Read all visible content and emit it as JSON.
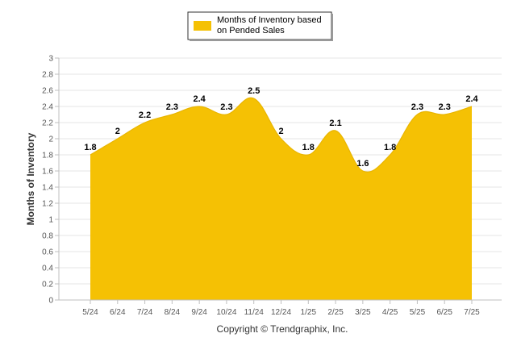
{
  "chart_data": {
    "type": "area",
    "categories": [
      "5/24",
      "6/24",
      "7/24",
      "8/24",
      "9/24",
      "10/24",
      "11/24",
      "12/24",
      "1/25",
      "2/25",
      "3/25",
      "4/25",
      "5/25",
      "6/25",
      "7/25"
    ],
    "series": [
      {
        "name": "Months of Inventory based on Pended Sales",
        "values": [
          1.8,
          2,
          2.2,
          2.3,
          2.4,
          2.3,
          2.5,
          2,
          1.8,
          2.1,
          1.6,
          1.8,
          2.3,
          2.3,
          2.4
        ],
        "color": "#F5C104"
      }
    ],
    "data_labels": [
      "1.8",
      "2",
      "2.2",
      "2.3",
      "2.4",
      "2.3",
      "2.5",
      "2",
      "1.8",
      "2.1",
      "1.6",
      "1.8",
      "2.3",
      "2.3",
      "2.4"
    ],
    "ylabel": "Months of Inventory",
    "xlabel": "",
    "ylim": [
      0,
      3
    ],
    "yticks": [
      "0",
      "0.2",
      "0.4",
      "0.6",
      "0.8",
      "1",
      "1.2",
      "1.4",
      "1.6",
      "1.8",
      "2",
      "2.2",
      "2.4",
      "2.6",
      "2.8",
      "3"
    ],
    "grid": true,
    "legend_position": "top-center",
    "legend": {
      "line1": "Months of Inventory based",
      "line2": "on Pended Sales"
    }
  },
  "credit": "Copyright © Trendgraphix, Inc.",
  "colors": {
    "area": "#F5C104",
    "grid": "#E6E6E6",
    "axis": "#BFBFBF"
  }
}
